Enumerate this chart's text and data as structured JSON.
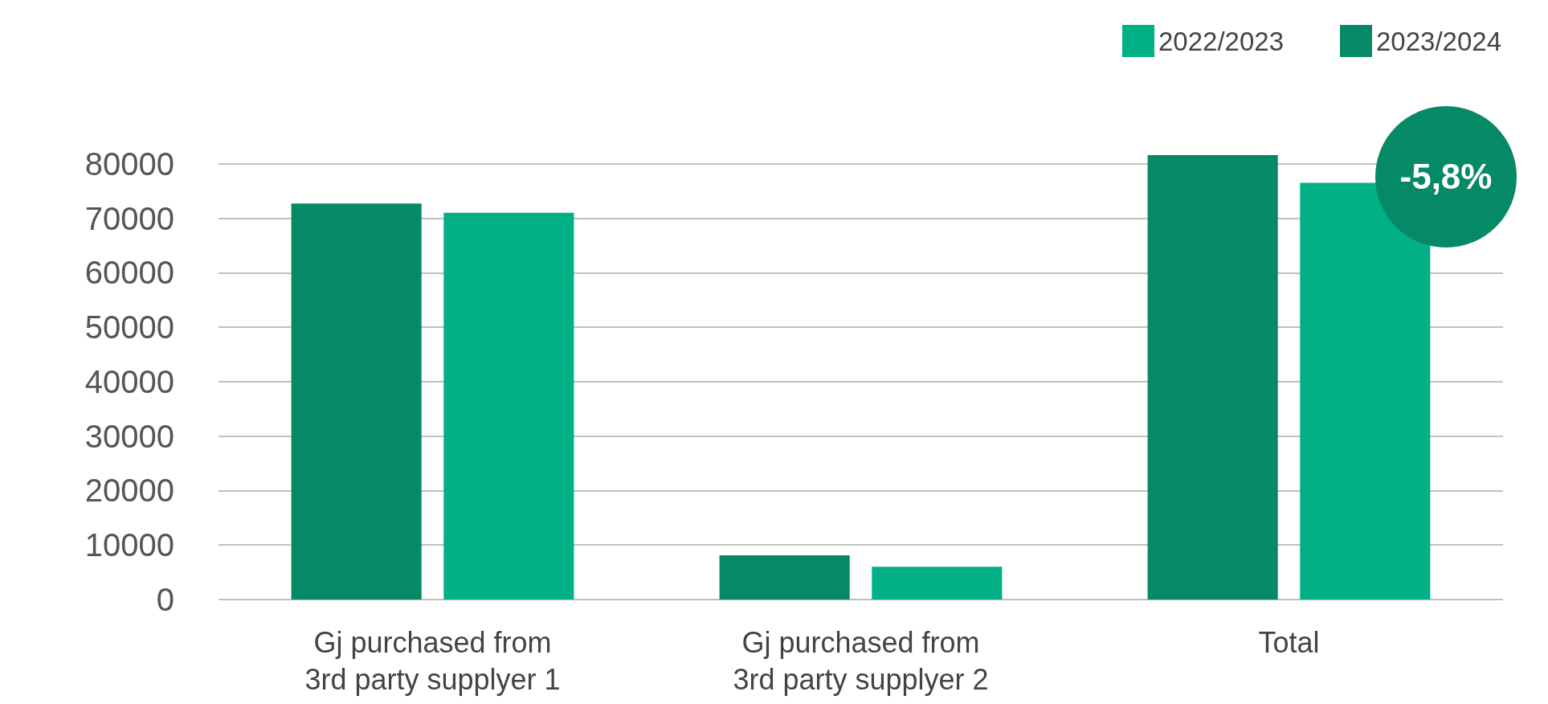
{
  "chart_data": {
    "type": "bar",
    "categories": [
      "Gj purchased from\n3rd party supplyer 1",
      "Gj purchased from\n3rd party supplyer 2",
      "Total"
    ],
    "series": [
      {
        "name": "2023/2024",
        "color": "#058966",
        "values": [
          72700,
          8100,
          81600
        ]
      },
      {
        "name": "2022/2023",
        "color": "#01b086",
        "values": [
          71000,
          6000,
          76500
        ]
      }
    ],
    "ylim": [
      0,
      81600
    ],
    "yticks": [
      0,
      10000,
      20000,
      30000,
      40000,
      50000,
      60000,
      70000,
      80000
    ],
    "grid": "y",
    "legend": "top right",
    "annotations": [
      "-5,8%"
    ]
  }
}
